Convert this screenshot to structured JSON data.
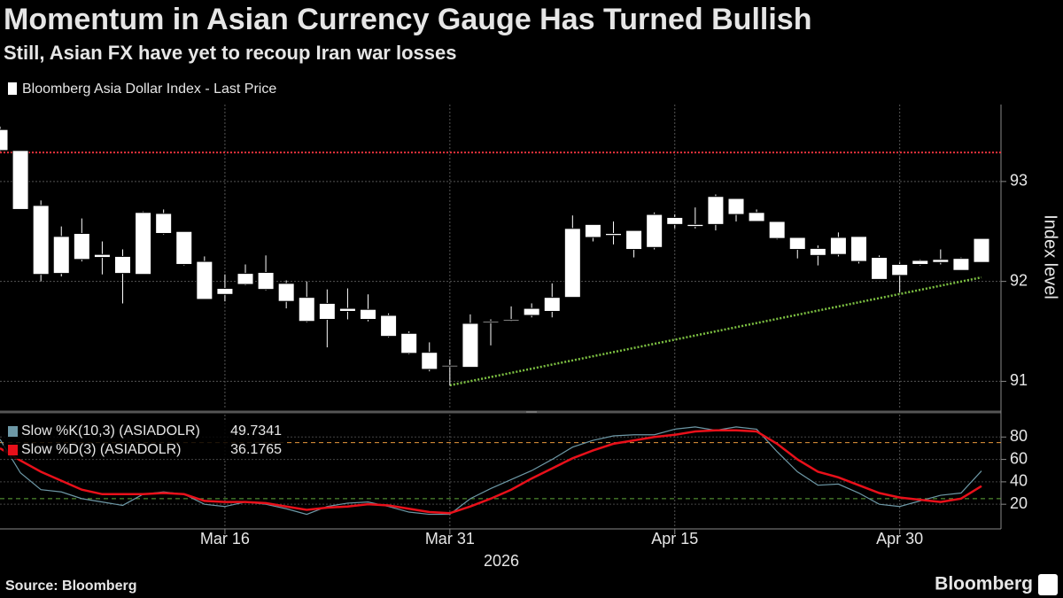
{
  "chart_data": {
    "title": "Momentum in Asian Currency Gauge Has Turned Bullish",
    "subtitle": "Still, Asian FX have yet to recoup Iran war losses",
    "source": "Source: Bloomberg",
    "brand": "Bloomberg",
    "xlabel": "2026",
    "categories": [
      null,
      null,
      null,
      null,
      null,
      null,
      null,
      null,
      null,
      null,
      null,
      "Mar 16",
      null,
      null,
      null,
      null,
      null,
      null,
      null,
      null,
      null,
      null,
      "Mar 31",
      null,
      null,
      null,
      null,
      null,
      null,
      null,
      null,
      null,
      null,
      "Apr 15",
      null,
      null,
      null,
      null,
      null,
      null,
      null,
      null,
      null,
      null,
      "Apr 30",
      null,
      null,
      null,
      null
    ],
    "panels": [
      {
        "type": "candlestick",
        "series_name": "Bloomberg Asia Dollar Index - Last Price",
        "ylabel": "Index level",
        "color": "#ffffff",
        "open": [
          93.52,
          93.31,
          92.76,
          92.08,
          92.48,
          92.27,
          92.25,
          92.07,
          92.68,
          92.5,
          92.2,
          91.87,
          91.97,
          92.09,
          91.98,
          91.84,
          91.62,
          91.73,
          91.72,
          91.66,
          91.48,
          91.29,
          91.16,
          91.14,
          91.59,
          91.61,
          91.66,
          91.7,
          91.84,
          92.57,
          92.48,
          92.51,
          92.34,
          92.64,
          92.57,
          92.57,
          92.83,
          92.69,
          92.6,
          92.44,
          92.33,
          92.27,
          92.45,
          92.24,
          92.06,
          92.17,
          92.22,
          92.23,
          92.19
        ],
        "high": [
          93.55,
          93.31,
          92.81,
          92.55,
          92.63,
          92.4,
          92.32,
          92.7,
          92.72,
          92.5,
          92.25,
          92.07,
          92.17,
          92.26,
          92.01,
          92.0,
          91.92,
          91.93,
          91.87,
          91.68,
          91.5,
          91.39,
          91.22,
          91.67,
          91.62,
          91.75,
          91.78,
          91.98,
          92.66,
          92.57,
          92.6,
          92.51,
          92.69,
          92.67,
          92.74,
          92.87,
          92.83,
          92.72,
          92.6,
          92.44,
          92.36,
          92.49,
          92.45,
          92.26,
          92.19,
          92.22,
          92.32,
          92.24,
          92.43
        ],
        "low": [
          93.3,
          92.72,
          92.0,
          92.05,
          92.2,
          92.07,
          91.78,
          92.07,
          92.47,
          92.16,
          91.82,
          91.8,
          91.96,
          91.91,
          91.73,
          91.59,
          91.34,
          91.62,
          91.6,
          91.44,
          91.27,
          91.1,
          90.96,
          91.14,
          91.36,
          91.6,
          91.64,
          91.64,
          91.84,
          92.4,
          92.37,
          92.24,
          92.32,
          92.53,
          92.53,
          92.51,
          92.6,
          92.6,
          92.42,
          92.23,
          92.16,
          92.25,
          92.18,
          92.02,
          91.89,
          92.16,
          92.17,
          92.11,
          92.19
        ],
        "close": [
          93.31,
          92.72,
          92.07,
          92.45,
          92.22,
          92.24,
          92.08,
          92.69,
          92.48,
          92.17,
          91.82,
          91.93,
          92.08,
          91.92,
          91.8,
          91.6,
          91.78,
          91.7,
          91.62,
          91.45,
          91.28,
          91.12,
          91.15,
          91.58,
          91.6,
          91.62,
          91.73,
          91.84,
          92.53,
          92.44,
          92.46,
          92.32,
          92.67,
          92.57,
          92.55,
          92.85,
          92.67,
          92.6,
          92.43,
          92.32,
          92.26,
          92.44,
          92.2,
          92.02,
          92.17,
          92.21,
          92.19,
          92.11,
          92.43
        ],
        "reference_line": {
          "value": 93.29,
          "color": "#e8323c"
        },
        "trend_line": {
          "from": 22,
          "to": 48,
          "values": [
            90.96,
            92.04
          ],
          "color": "#7dc142"
        },
        "ylim": [
          90.72,
          93.77
        ],
        "yticks": [
          91,
          92,
          93
        ],
        "grid": true
      },
      {
        "type": "line",
        "series": [
          {
            "name": "Slow %K(10,3) (ASIADOLR)",
            "color": "#6d98a6",
            "values": [
              78,
              48,
              33,
              31,
              25,
              22,
              19,
              29,
              31,
              29,
              20,
              18,
              22,
              20,
              16,
              11,
              18,
              21,
              22,
              18,
              13,
              11,
              11,
              25,
              34,
              42,
              50,
              60,
              71,
              77,
              81,
              82,
              82,
              87,
              89,
              86,
              89,
              87,
              67,
              49,
              37,
              38,
              30,
              20,
              18,
              23,
              28,
              30,
              49.7341
            ]
          },
          {
            "name": "Slow %D(3) (ASIADOLR)",
            "color": "#e8101a",
            "values": [
              70,
              59,
              49,
              41,
              33,
              29,
              29,
              29,
              30,
              29,
              23,
              22,
              22,
              21,
              18,
              15,
              17,
              18,
              20,
              19,
              16,
              13,
              12,
              18,
              25,
              33,
              43,
              52,
              61,
              68,
              74,
              77,
              80,
              82,
              85,
              86,
              86,
              85,
              74,
              60,
              49,
              44,
              37,
              30,
              26,
              24,
              22,
              25,
              36.1765
            ]
          }
        ],
        "levels": [
          {
            "value": 75,
            "color": "#e8963c"
          },
          {
            "value": 25,
            "color": "#5fa83a"
          }
        ],
        "ylim": [
          -2,
          100
        ],
        "yticks": [
          20,
          40,
          60,
          80
        ],
        "grid": true
      }
    ]
  }
}
